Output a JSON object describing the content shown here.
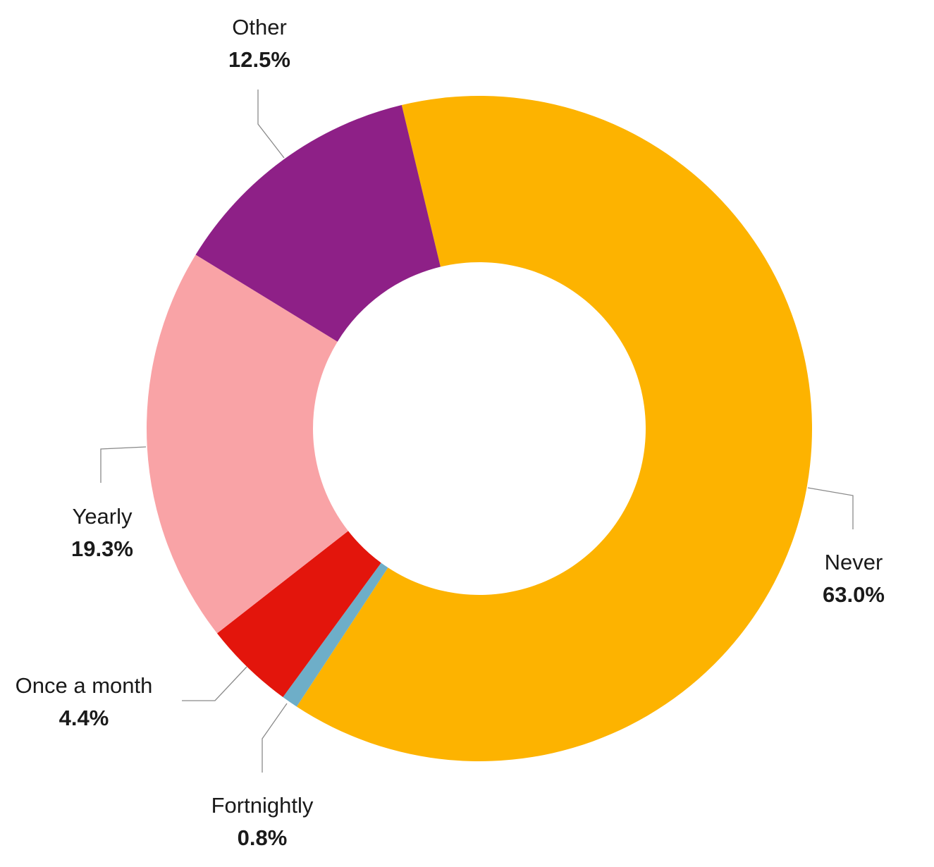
{
  "chart_data": {
    "type": "pie",
    "variant": "donut",
    "title": "",
    "slices": [
      {
        "label": "Never",
        "value": 63.0,
        "value_label": "63.0%",
        "color": "#FDB300"
      },
      {
        "label": "Fortnightly",
        "value": 0.8,
        "value_label": "0.8%",
        "color": "#6EAEC8"
      },
      {
        "label": "Once a month",
        "value": 4.4,
        "value_label": "4.4%",
        "color": "#E3150C"
      },
      {
        "label": "Yearly",
        "value": 19.3,
        "value_label": "19.3%",
        "color": "#F9A3A6"
      },
      {
        "label": "Other",
        "value": 12.5,
        "value_label": "12.5%",
        "color": "#8E2087"
      }
    ],
    "legend": "none"
  }
}
